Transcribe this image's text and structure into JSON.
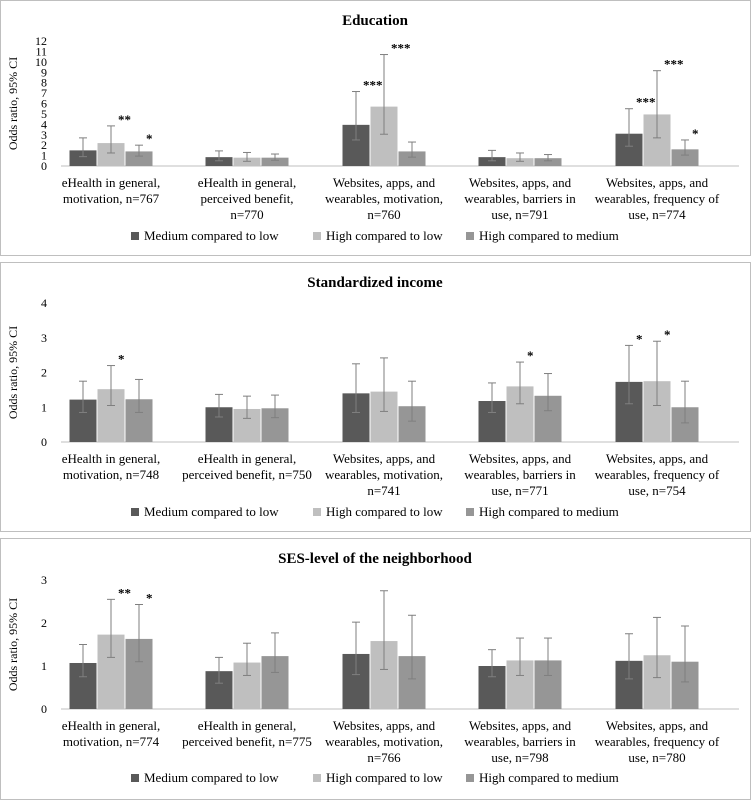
{
  "chart_data": [
    {
      "type": "bar",
      "title": "Education",
      "ylabel": "Odds ratio, 95% CI",
      "ylim": [
        0,
        12
      ],
      "yticks": [
        0,
        1,
        2,
        3,
        4,
        5,
        6,
        7,
        8,
        9,
        10,
        11,
        12
      ],
      "categories": [
        [
          "eHealth in general,",
          "motivation, n=767"
        ],
        [
          "eHealth in general,",
          "perceived benefit,",
          "n=770"
        ],
        [
          "Websites, apps, and",
          "wearables, motivation,",
          "n=760"
        ],
        [
          "Websites, apps, and",
          "wearables, barriers in",
          "use, n=791"
        ],
        [
          "Websites, apps, and",
          "wearables, frequency of",
          "use, n=774"
        ]
      ],
      "series": [
        {
          "name": "Medium compared to low",
          "color": "#595959",
          "values": [
            1.5,
            0.85,
            3.95,
            0.85,
            3.1
          ],
          "ci": [
            [
              0.9,
              2.7
            ],
            [
              0.5,
              1.45
            ],
            [
              2.5,
              7.15
            ],
            [
              0.5,
              1.5
            ],
            [
              1.9,
              5.5
            ]
          ],
          "sig": [
            "",
            "",
            "***",
            "",
            "***"
          ]
        },
        {
          "name": "High compared to low",
          "color": "#bfbfbf",
          "values": [
            2.2,
            0.8,
            5.7,
            0.75,
            4.95
          ],
          "ci": [
            [
              1.25,
              3.85
            ],
            [
              0.45,
              1.3
            ],
            [
              3.05,
              10.7
            ],
            [
              0.45,
              1.25
            ],
            [
              2.7,
              9.15
            ]
          ],
          "sig": [
            "**",
            "",
            "***",
            "",
            "***"
          ]
        },
        {
          "name": "High compared to medium",
          "color": "#969696",
          "values": [
            1.4,
            0.8,
            1.4,
            0.75,
            1.6
          ],
          "ci": [
            [
              0.95,
              2.0
            ],
            [
              0.55,
              1.15
            ],
            [
              0.85,
              2.3
            ],
            [
              0.5,
              1.1
            ],
            [
              1.05,
              2.5
            ]
          ],
          "sig": [
            "*",
            "",
            "",
            "",
            "*"
          ]
        }
      ]
    },
    {
      "type": "bar",
      "title": "Standardized income",
      "ylabel": "Odds ratio, 95% CI",
      "ylim": [
        0,
        4
      ],
      "yticks": [
        0,
        1,
        2,
        3,
        4
      ],
      "categories": [
        [
          "eHealth in general,",
          "motivation, n=748"
        ],
        [
          "eHealth in general,",
          "perceived benefit, n=750"
        ],
        [
          "Websites, apps, and",
          "wearables, motivation,",
          "n=741"
        ],
        [
          "Websites, apps, and",
          "wearables, barriers in",
          "use, n=771"
        ],
        [
          "Websites, apps, and",
          "wearables, frequency of",
          "use, n=754"
        ]
      ],
      "series": [
        {
          "name": "Medium compared to low",
          "color": "#595959",
          "values": [
            1.22,
            1.0,
            1.4,
            1.18,
            1.73
          ],
          "ci": [
            [
              0.85,
              1.75
            ],
            [
              0.72,
              1.37
            ],
            [
              0.85,
              2.25
            ],
            [
              0.85,
              1.7
            ],
            [
              1.1,
              2.78
            ]
          ],
          "sig": [
            "",
            "",
            "",
            "",
            "*"
          ]
        },
        {
          "name": "High compared to low",
          "color": "#bfbfbf",
          "values": [
            1.52,
            0.95,
            1.45,
            1.6,
            1.75
          ],
          "ci": [
            [
              1.05,
              2.2
            ],
            [
              0.68,
              1.32
            ],
            [
              0.88,
              2.42
            ],
            [
              1.1,
              2.3
            ],
            [
              1.05,
              2.9
            ]
          ],
          "sig": [
            "*",
            "",
            "",
            "*",
            "*"
          ]
        },
        {
          "name": "High compared to medium",
          "color": "#969696",
          "values": [
            1.23,
            0.97,
            1.03,
            1.33,
            1.0
          ],
          "ci": [
            [
              0.85,
              1.8
            ],
            [
              0.7,
              1.35
            ],
            [
              0.6,
              1.75
            ],
            [
              0.9,
              1.97
            ],
            [
              0.55,
              1.75
            ]
          ],
          "sig": [
            "",
            "",
            "",
            "",
            ""
          ]
        }
      ]
    },
    {
      "type": "bar",
      "title": "SES-level of the neighborhood",
      "ylabel": "Odds ratio, 95% CI",
      "ylim": [
        0,
        3
      ],
      "yticks": [
        0,
        1,
        2,
        3
      ],
      "categories": [
        [
          "eHealth in general,",
          "motivation, n=774"
        ],
        [
          "eHealth in general,",
          "perceived benefit, n=775"
        ],
        [
          "Websites, apps, and",
          "wearables, motivation,",
          "n=766"
        ],
        [
          "Websites, apps, and",
          "wearables, barriers in",
          "use, n=798"
        ],
        [
          "Websites, apps, and",
          "wearables, frequency of",
          "use, n=780"
        ]
      ],
      "series": [
        {
          "name": "Medium compared to low",
          "color": "#595959",
          "values": [
            1.07,
            0.88,
            1.28,
            1.0,
            1.12
          ],
          "ci": [
            [
              0.75,
              1.5
            ],
            [
              0.6,
              1.2
            ],
            [
              0.8,
              2.02
            ],
            [
              0.75,
              1.38
            ],
            [
              0.7,
              1.75
            ]
          ],
          "sig": [
            "",
            "",
            "",
            "",
            ""
          ]
        },
        {
          "name": "High compared to low",
          "color": "#bfbfbf",
          "values": [
            1.73,
            1.08,
            1.58,
            1.13,
            1.25
          ],
          "ci": [
            [
              1.2,
              2.55
            ],
            [
              0.78,
              1.53
            ],
            [
              0.92,
              2.75
            ],
            [
              0.78,
              1.65
            ],
            [
              0.73,
              2.13
            ]
          ],
          "sig": [
            "**",
            "",
            "",
            "",
            ""
          ]
        },
        {
          "name": "High compared to medium",
          "color": "#969696",
          "values": [
            1.63,
            1.23,
            1.23,
            1.13,
            1.1
          ],
          "ci": [
            [
              1.1,
              2.43
            ],
            [
              0.85,
              1.77
            ],
            [
              0.7,
              2.18
            ],
            [
              0.78,
              1.65
            ],
            [
              0.63,
              1.93
            ]
          ],
          "sig": [
            "*",
            "",
            "",
            "",
            ""
          ]
        }
      ]
    }
  ]
}
